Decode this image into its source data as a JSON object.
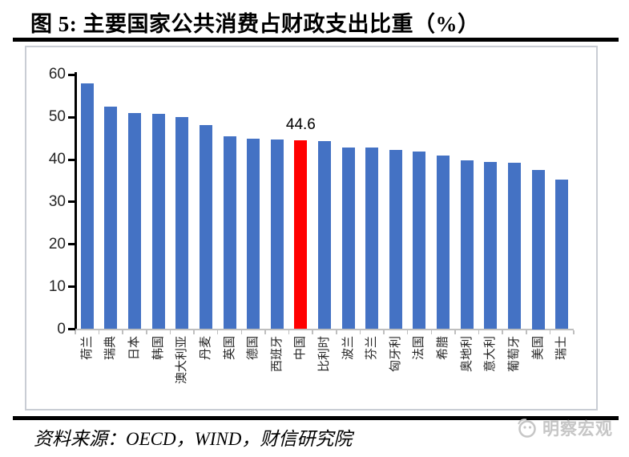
{
  "title": "图 5: 主要国家公共消费占财政支出比重（%）",
  "source_line": "资料来源：OECD，WIND，财信研究院",
  "watermark": {
    "label": "明察宏观",
    "icon": "magnifier-face-icon"
  },
  "colors": {
    "bar": "#4472C4",
    "highlight": "#FF0000",
    "axis": "#000000",
    "baseline": "#BFBFBF",
    "frame_border": "#C9CDD4",
    "watermark": "#C6C6C6"
  },
  "chart_data": {
    "type": "bar",
    "title": "图 5: 主要国家公共消费占财政支出比重（%）",
    "xlabel": "",
    "ylabel": "",
    "ylim": [
      0,
      60
    ],
    "yticks": [
      0,
      10,
      20,
      30,
      40,
      50,
      60
    ],
    "grid": false,
    "legend": "none",
    "categories": [
      "荷兰",
      "瑞典",
      "日本",
      "韩国",
      "澳大利亚",
      "丹麦",
      "英国",
      "德国",
      "西班牙",
      "中国",
      "比利时",
      "波兰",
      "芬兰",
      "匈牙利",
      "法国",
      "希腊",
      "奥地利",
      "意大利",
      "葡萄牙",
      "美国",
      "瑞士"
    ],
    "values": [
      57.9,
      52.5,
      50.9,
      50.8,
      50.1,
      48.1,
      45.4,
      44.9,
      44.7,
      44.6,
      44.3,
      42.8,
      42.8,
      42.3,
      41.9,
      40.9,
      39.8,
      39.4,
      39.2,
      37.5,
      35.2
    ],
    "bar_color": "#4472C4",
    "highlight_index": 9,
    "highlight_color": "#FF0000",
    "data_labels": [
      {
        "index": 9,
        "text": "44.6"
      }
    ]
  }
}
